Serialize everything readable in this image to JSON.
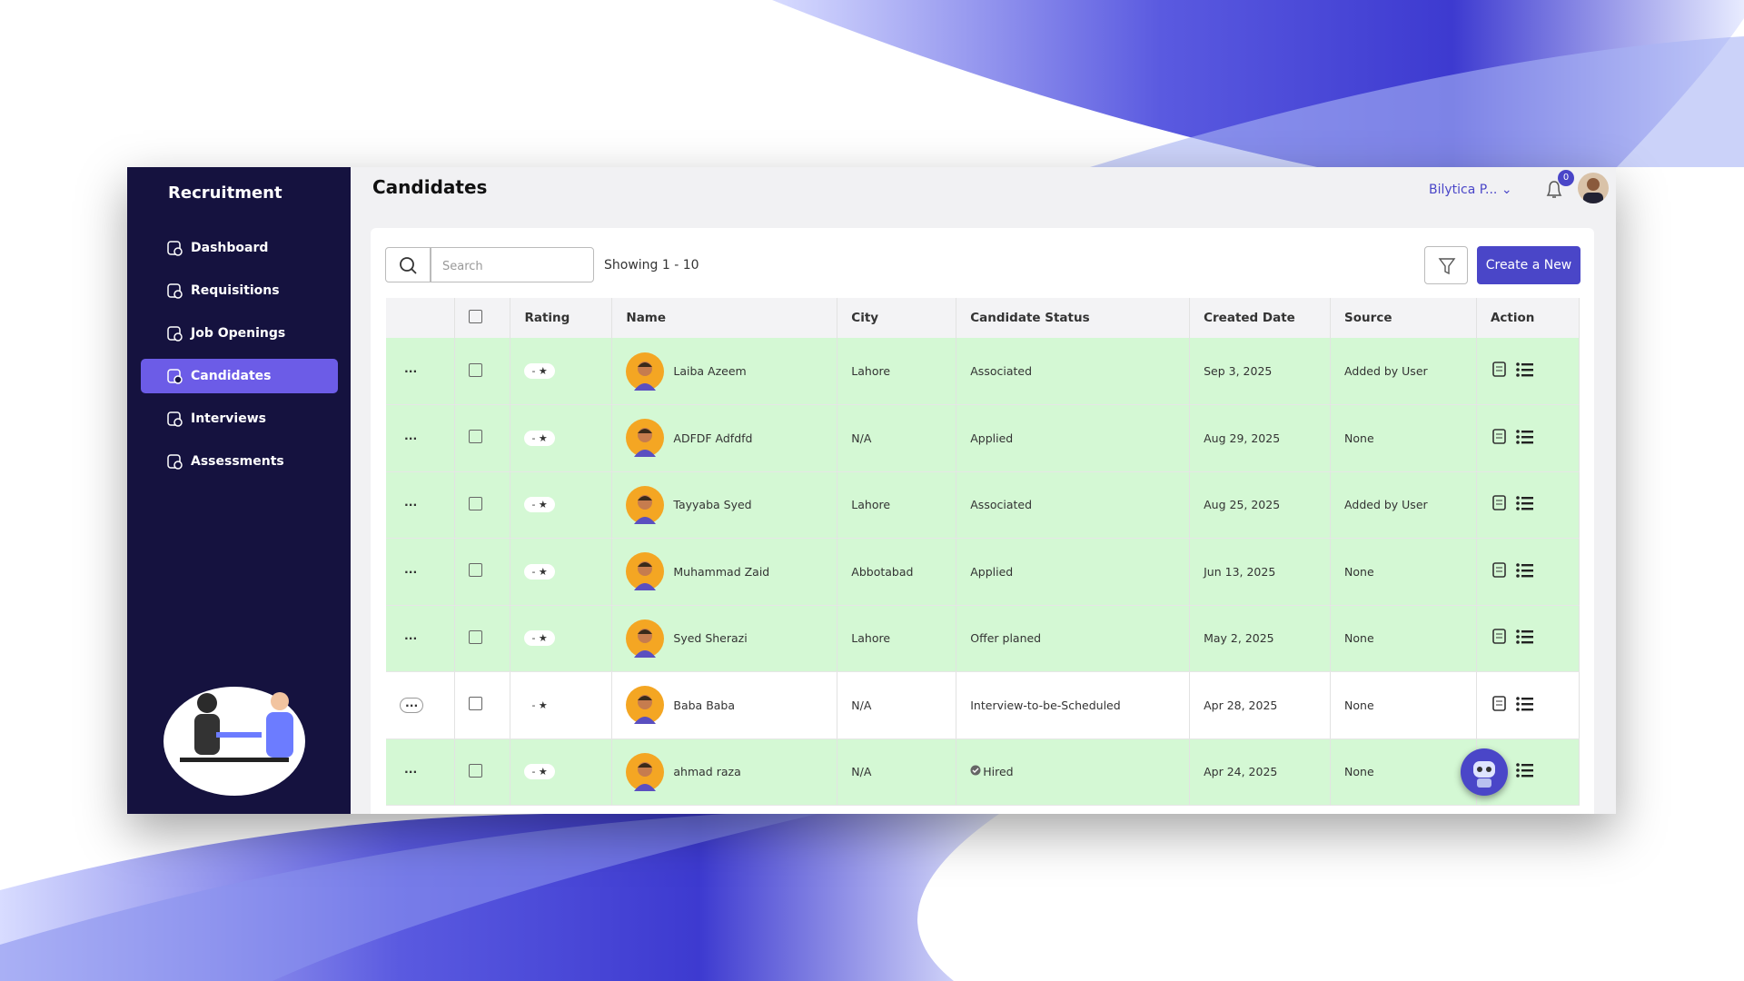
{
  "sidebar": {
    "title": "Recruitment",
    "nav": [
      "Dashboard",
      "Requisitions",
      "Job Openings",
      "Candidates",
      "Interviews",
      "Assessments"
    ],
    "active": 3
  },
  "header": {
    "title": "Candidates",
    "user": "Bilytica P...",
    "notifications": "0"
  },
  "toolbar": {
    "search_placeholder": "Search",
    "showing": "Showing 1 - 10",
    "create": "Create a New"
  },
  "table": {
    "columns": [
      "Rating",
      "Name",
      "City",
      "Candidate Status",
      "Created Date",
      "Source",
      "Action"
    ],
    "rows": [
      {
        "rating": "-",
        "name": "Laiba Azeem",
        "city": "Lahore",
        "status": "Associated",
        "date": "Sep 3, 2025",
        "source": "Added by User",
        "highlight": true
      },
      {
        "rating": "-",
        "name": "ADFDF Adfdfd",
        "city": "N/A",
        "status": "Applied",
        "date": "Aug 29, 2025",
        "source": "None",
        "highlight": true
      },
      {
        "rating": "-",
        "name": "Tayyaba Syed",
        "city": "Lahore",
        "status": "Associated",
        "date": "Aug 25, 2025",
        "source": "Added by User",
        "highlight": true
      },
      {
        "rating": "-",
        "name": "Muhammad Zaid",
        "city": "Abbotabad",
        "status": "Applied",
        "date": "Jun 13, 2025",
        "source": "None",
        "highlight": true
      },
      {
        "rating": "-",
        "name": "Syed Sherazi",
        "city": "Lahore",
        "status": "Offer planed",
        "date": "May 2, 2025",
        "source": "None",
        "highlight": true
      },
      {
        "rating": "-",
        "name": "Baba Baba",
        "city": "N/A",
        "status": "Interview-to-be-Scheduled",
        "date": "Apr 28, 2025",
        "source": "None",
        "highlight": false
      },
      {
        "rating": "-",
        "name": "ahmad raza",
        "city": "N/A",
        "status": "Hired",
        "date": "Apr 24, 2025",
        "source": "None",
        "highlight": true,
        "status_check": true
      }
    ]
  }
}
